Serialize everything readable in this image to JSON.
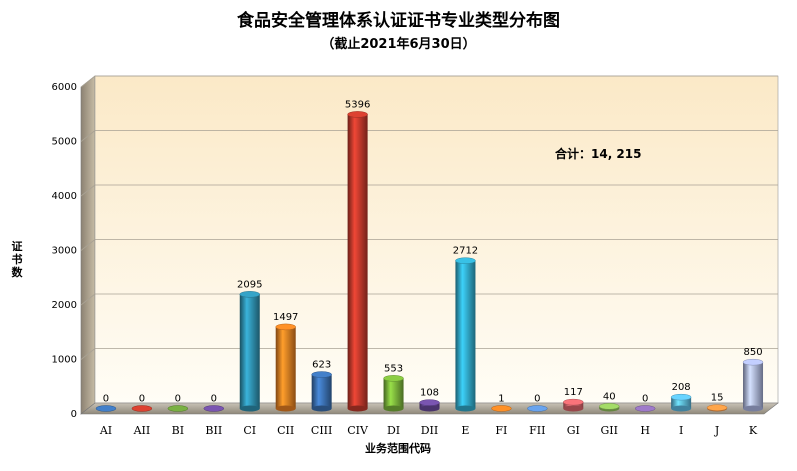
{
  "chart_data": {
    "type": "bar",
    "title": "食品安全管理体系认证证书专业类型分布图",
    "subtitle": "（截止2021年6月30日）",
    "xlabel": "业务范围代码",
    "ylabel": "证书数",
    "ylim": [
      0,
      6000
    ],
    "yticks": [
      "0",
      "1000",
      "2000",
      "3000",
      "4000",
      "5000",
      "6000"
    ],
    "grid": true,
    "categories": [
      "AI",
      "AII",
      "BI",
      "BII",
      "CI",
      "CII",
      "CIII",
      "CIV",
      "DI",
      "DII",
      "E",
      "FI",
      "FII",
      "GI",
      "GII",
      "H",
      "I",
      "J",
      "K"
    ],
    "values": [
      0,
      0,
      0,
      0,
      2095,
      1497,
      623,
      5396,
      553,
      108,
      2712,
      1,
      0,
      117,
      40,
      0,
      208,
      15,
      850
    ],
    "bar_colors": [
      "#3a6fb0",
      "#c0392b",
      "#6a9a3a",
      "#6a4a9a",
      "#2e8fae",
      "#e67e22",
      "#3a6fb0",
      "#c0392b",
      "#7ab33a",
      "#6a4a9a",
      "#31a8c8",
      "#e67e22",
      "#5b8fd0",
      "#d9646a",
      "#8fbf5a",
      "#8a6ab0",
      "#5bb8e0",
      "#f09040",
      "#aab4e0"
    ],
    "annotation": "合计：14, 215"
  }
}
